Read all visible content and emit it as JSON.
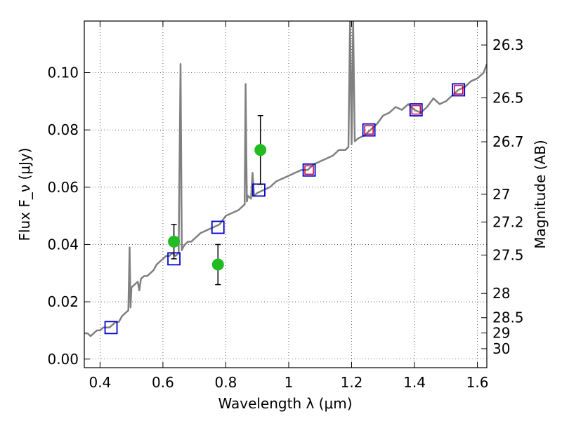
{
  "chart_data": {
    "type": "line",
    "xlabel": "Wavelength λ (μm)",
    "ylabel": "Flux F_ν (μJy)",
    "ylabel_right": "Magnitude (AB)",
    "xlim": [
      0.35,
      1.63
    ],
    "ylim": [
      -0.003,
      0.118
    ],
    "grid": true,
    "x_ticks": [
      0.4,
      0.6,
      0.8,
      1.0,
      1.2,
      1.4,
      1.6
    ],
    "x_tick_labels": [
      "0.4",
      "0.6",
      "0.8",
      "1",
      "1.2",
      "1.4",
      "1.6"
    ],
    "y_ticks": [
      0.0,
      0.02,
      0.04,
      0.06,
      0.08,
      0.1
    ],
    "y_tick_labels": [
      "0.00",
      "0.02",
      "0.04",
      "0.06",
      "0.08",
      "0.10"
    ],
    "mag_ticks": [
      26.3,
      26.5,
      26.7,
      27,
      27.2,
      27.5,
      28,
      28.5,
      29,
      30
    ],
    "mag_tick_labels": [
      "26.3",
      "26.5",
      "26.7",
      "27",
      "27.2",
      "27.5",
      "28",
      "28.5",
      "29",
      "30"
    ],
    "colors": {
      "sed": "#808080",
      "model": "#0000cc",
      "observed": "#22bb22",
      "nir_marker": "#cc0033",
      "error_bar": "#000000"
    },
    "series": [
      {
        "kind": "line",
        "x": [
          0.35,
          0.36,
          0.37,
          0.38,
          0.39,
          0.4,
          0.41,
          0.42,
          0.43,
          0.44,
          0.45,
          0.46,
          0.47,
          0.48,
          0.49,
          0.494,
          0.497,
          0.5,
          0.51,
          0.52,
          0.525,
          0.53,
          0.54,
          0.55,
          0.56,
          0.57,
          0.58,
          0.59,
          0.6,
          0.61,
          0.62,
          0.63,
          0.64,
          0.65,
          0.656,
          0.66,
          0.664,
          0.67,
          0.68,
          0.69,
          0.7,
          0.72,
          0.74,
          0.76,
          0.78,
          0.8,
          0.82,
          0.84,
          0.85,
          0.86,
          0.863,
          0.867,
          0.87,
          0.88,
          0.885,
          0.89,
          0.9,
          0.92,
          0.94,
          0.96,
          0.98,
          1.0,
          1.02,
          1.04,
          1.06,
          1.08,
          1.1,
          1.12,
          1.14,
          1.16,
          1.18,
          1.19,
          1.195,
          1.2,
          1.205,
          1.21,
          1.22,
          1.24,
          1.26,
          1.28,
          1.3,
          1.32,
          1.34,
          1.36,
          1.38,
          1.4,
          1.42,
          1.44,
          1.46,
          1.48,
          1.5,
          1.52,
          1.54,
          1.56,
          1.58,
          1.6,
          1.62,
          1.63
        ],
        "y": [
          0.009,
          0.009,
          0.008,
          0.009,
          0.01,
          0.01,
          0.011,
          0.011,
          0.011,
          0.012,
          0.013,
          0.013,
          0.015,
          0.016,
          0.017,
          0.039,
          0.018,
          0.025,
          0.026,
          0.027,
          0.024,
          0.028,
          0.029,
          0.029,
          0.03,
          0.031,
          0.033,
          0.034,
          0.035,
          0.036,
          0.036,
          0.037,
          0.036,
          0.037,
          0.103,
          0.038,
          0.039,
          0.04,
          0.041,
          0.041,
          0.042,
          0.044,
          0.045,
          0.046,
          0.047,
          0.05,
          0.051,
          0.052,
          0.053,
          0.054,
          0.096,
          0.055,
          0.057,
          0.056,
          0.065,
          0.057,
          0.058,
          0.059,
          0.06,
          0.062,
          0.063,
          0.064,
          0.065,
          0.066,
          0.066,
          0.068,
          0.069,
          0.07,
          0.071,
          0.073,
          0.073,
          0.074,
          0.118,
          0.075,
          0.118,
          0.076,
          0.077,
          0.078,
          0.08,
          0.082,
          0.085,
          0.086,
          0.088,
          0.087,
          0.089,
          0.087,
          0.086,
          0.088,
          0.091,
          0.089,
          0.09,
          0.092,
          0.094,
          0.095,
          0.097,
          0.098,
          0.1,
          0.103
        ]
      },
      {
        "kind": "scatter",
        "marker": "open-square",
        "x": [
          0.435,
          0.635,
          0.775,
          0.905,
          1.065,
          1.255,
          1.405,
          1.54
        ],
        "y": [
          0.011,
          0.035,
          0.046,
          0.059,
          0.066,
          0.08,
          0.087,
          0.094
        ]
      },
      {
        "kind": "scatter",
        "marker": "filled-circle",
        "x": [
          0.635,
          0.775,
          0.91
        ],
        "y": [
          0.041,
          0.033,
          0.073
        ],
        "yerr": [
          0.006,
          0.007,
          0.012
        ]
      },
      {
        "kind": "scatter",
        "marker": "small-open-square",
        "x": [
          1.065,
          1.255,
          1.405,
          1.54
        ],
        "y": [
          0.066,
          0.08,
          0.087,
          0.094
        ]
      }
    ]
  }
}
